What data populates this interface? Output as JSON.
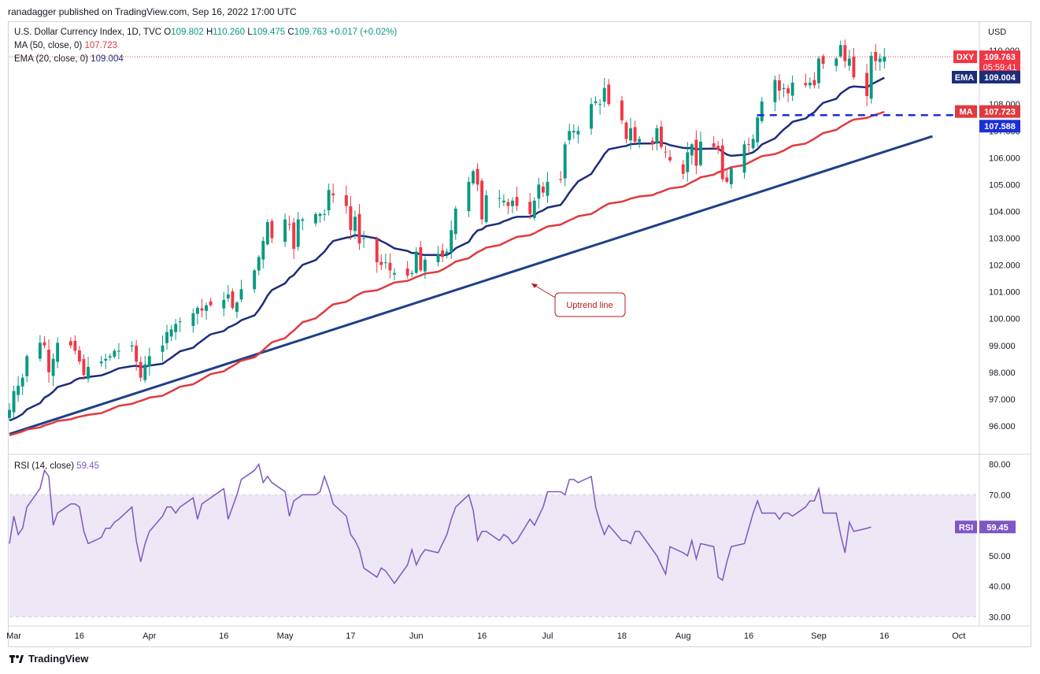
{
  "publisher": "ranadagger published on TradingView.com, Sep 16, 2022 17:00 UTC",
  "symbol_line": {
    "name": "U.S. Dollar Currency Index, 1D, TVC",
    "o_label": "O",
    "o": "109.802",
    "h_label": "H",
    "h": "110.260",
    "l_label": "L",
    "l": "109.475",
    "c_label": "C",
    "c": "109.763",
    "change": "+0.017 (+0.02%)"
  },
  "ma_line": {
    "label": "MA (50, close, 0)",
    "value": "107.723"
  },
  "ema_line": {
    "label": "EMA (20, close, 0)",
    "value": "109.004"
  },
  "rsi_line": {
    "label": "RSI (14, close)",
    "value": "59.45"
  },
  "footer": {
    "brand": "TradingView"
  },
  "colors": {
    "up": "#089981",
    "down": "#f23645",
    "ema": "#1c2e7a",
    "ma": "#e03a3e",
    "trend": "#1f3f8a",
    "rsi": "#7e57c2",
    "rsi_band": "#ede7f6",
    "support": "#1b2fd6"
  },
  "chart_data": [
    {
      "type": "candlestick",
      "currency": "USD",
      "ylim": [
        95.0,
        111.0
      ],
      "y_ticks": [
        "96.000",
        "97.000",
        "98.000",
        "99.000",
        "100.000",
        "101.000",
        "102.000",
        "103.000",
        "104.000",
        "105.000",
        "106.000",
        "107.000",
        "108.000",
        "109.000",
        "110.000"
      ],
      "x_ticks": [
        "Mar",
        "16",
        "Apr",
        "16",
        "May",
        "17",
        "Jun",
        "16",
        "Jul",
        "18",
        "Aug",
        "16",
        "Sep",
        "16",
        "Oct"
      ],
      "x_tick_dates": [
        "2022-03-01",
        "2022-03-16",
        "2022-04-01",
        "2022-04-18",
        "2022-05-02",
        "2022-05-17",
        "2022-06-01",
        "2022-06-16",
        "2022-07-01",
        "2022-07-18",
        "2022-08-01",
        "2022-08-16",
        "2022-09-01",
        "2022-09-16",
        "2022-10-03"
      ],
      "close_series": [
        [
          "2022-02-28",
          96.6
        ],
        [
          "2022-03-01",
          97.3
        ],
        [
          "2022-03-02",
          97.5
        ],
        [
          "2022-03-03",
          97.8
        ],
        [
          "2022-03-04",
          98.6
        ],
        [
          "2022-03-07",
          99.1
        ],
        [
          "2022-03-08",
          99.0
        ],
        [
          "2022-03-09",
          98.0
        ],
        [
          "2022-03-10",
          98.5
        ],
        [
          "2022-03-11",
          99.1
        ],
        [
          "2022-03-14",
          99.0
        ],
        [
          "2022-03-15",
          98.8
        ],
        [
          "2022-03-16",
          98.4
        ],
        [
          "2022-03-17",
          97.9
        ],
        [
          "2022-03-18",
          98.2
        ],
        [
          "2022-03-21",
          98.4
        ],
        [
          "2022-03-22",
          98.5
        ],
        [
          "2022-03-23",
          98.6
        ],
        [
          "2022-03-24",
          98.8
        ],
        [
          "2022-03-25",
          98.8
        ],
        [
          "2022-03-28",
          99.0
        ],
        [
          "2022-03-29",
          98.4
        ],
        [
          "2022-03-30",
          97.8
        ],
        [
          "2022-03-31",
          98.3
        ],
        [
          "2022-04-01",
          98.6
        ],
        [
          "2022-04-04",
          99.0
        ],
        [
          "2022-04-05",
          99.5
        ],
        [
          "2022-04-06",
          99.6
        ],
        [
          "2022-04-07",
          99.8
        ],
        [
          "2022-04-08",
          99.9
        ],
        [
          "2022-04-11",
          100.2
        ],
        [
          "2022-04-12",
          100.4
        ],
        [
          "2022-04-13",
          100.3
        ],
        [
          "2022-04-14",
          100.5
        ],
        [
          "2022-04-15",
          100.5
        ],
        [
          "2022-04-18",
          100.7
        ],
        [
          "2022-04-19",
          100.9
        ],
        [
          "2022-04-20",
          100.4
        ],
        [
          "2022-04-21",
          100.6
        ],
        [
          "2022-04-22",
          101.1
        ],
        [
          "2022-04-25",
          101.8
        ],
        [
          "2022-04-26",
          102.3
        ],
        [
          "2022-04-27",
          102.9
        ],
        [
          "2022-04-28",
          103.6
        ],
        [
          "2022-04-29",
          103.0
        ],
        [
          "2022-05-02",
          103.7
        ],
        [
          "2022-05-03",
          103.5
        ],
        [
          "2022-05-04",
          102.6
        ],
        [
          "2022-05-05",
          103.7
        ],
        [
          "2022-05-06",
          103.7
        ],
        [
          "2022-05-09",
          103.9
        ],
        [
          "2022-05-10",
          103.9
        ],
        [
          "2022-05-11",
          103.9
        ],
        [
          "2022-05-12",
          104.8
        ],
        [
          "2022-05-13",
          104.6
        ],
        [
          "2022-05-16",
          104.2
        ],
        [
          "2022-05-17",
          103.3
        ],
        [
          "2022-05-18",
          103.8
        ],
        [
          "2022-05-19",
          102.8
        ],
        [
          "2022-05-20",
          103.0
        ],
        [
          "2022-05-23",
          102.1
        ],
        [
          "2022-05-24",
          102.0
        ],
        [
          "2022-05-25",
          102.1
        ],
        [
          "2022-05-26",
          101.8
        ],
        [
          "2022-05-27",
          101.7
        ],
        [
          "2022-05-30",
          101.6
        ],
        [
          "2022-05-31",
          101.7
        ],
        [
          "2022-06-01",
          102.5
        ],
        [
          "2022-06-02",
          101.8
        ],
        [
          "2022-06-03",
          102.2
        ],
        [
          "2022-06-06",
          102.4
        ],
        [
          "2022-06-07",
          102.3
        ],
        [
          "2022-06-08",
          102.5
        ],
        [
          "2022-06-09",
          103.3
        ],
        [
          "2022-06-10",
          104.1
        ],
        [
          "2022-06-13",
          105.1
        ],
        [
          "2022-06-14",
          105.5
        ],
        [
          "2022-06-15",
          105.0
        ],
        [
          "2022-06-16",
          103.7
        ],
        [
          "2022-06-17",
          104.6
        ],
        [
          "2022-06-20",
          104.5
        ],
        [
          "2022-06-21",
          104.4
        ],
        [
          "2022-06-22",
          104.2
        ],
        [
          "2022-06-23",
          104.4
        ],
        [
          "2022-06-24",
          104.2
        ],
        [
          "2022-06-27",
          103.9
        ],
        [
          "2022-06-28",
          104.4
        ],
        [
          "2022-06-29",
          105.0
        ],
        [
          "2022-06-30",
          104.7
        ],
        [
          "2022-07-01",
          105.1
        ],
        [
          "2022-07-04",
          105.2
        ],
        [
          "2022-07-05",
          106.5
        ],
        [
          "2022-07-06",
          107.0
        ],
        [
          "2022-07-07",
          107.0
        ],
        [
          "2022-07-08",
          107.0
        ],
        [
          "2022-07-11",
          108.0
        ],
        [
          "2022-07-12",
          108.1
        ],
        [
          "2022-07-13",
          108.0
        ],
        [
          "2022-07-14",
          108.6
        ],
        [
          "2022-07-15",
          108.0
        ],
        [
          "2022-07-18",
          107.4
        ],
        [
          "2022-07-19",
          106.7
        ],
        [
          "2022-07-20",
          107.1
        ],
        [
          "2022-07-21",
          106.6
        ],
        [
          "2022-07-22",
          106.7
        ],
        [
          "2022-07-25",
          106.5
        ],
        [
          "2022-07-26",
          107.1
        ],
        [
          "2022-07-27",
          106.4
        ],
        [
          "2022-07-28",
          106.2
        ],
        [
          "2022-07-29",
          105.9
        ],
        [
          "2022-08-01",
          105.4
        ],
        [
          "2022-08-02",
          106.2
        ],
        [
          "2022-08-03",
          106.5
        ],
        [
          "2022-08-04",
          105.7
        ],
        [
          "2022-08-05",
          106.6
        ],
        [
          "2022-08-08",
          106.4
        ],
        [
          "2022-08-09",
          106.3
        ],
        [
          "2022-08-10",
          105.2
        ],
        [
          "2022-08-11",
          105.1
        ],
        [
          "2022-08-12",
          105.6
        ],
        [
          "2022-08-15",
          106.5
        ],
        [
          "2022-08-16",
          106.5
        ],
        [
          "2022-08-17",
          106.7
        ],
        [
          "2022-08-18",
          107.5
        ],
        [
          "2022-08-19",
          108.1
        ],
        [
          "2022-08-22",
          108.9
        ],
        [
          "2022-08-23",
          108.5
        ],
        [
          "2022-08-24",
          108.6
        ],
        [
          "2022-08-25",
          108.4
        ],
        [
          "2022-08-26",
          108.8
        ],
        [
          "2022-08-29",
          108.7
        ],
        [
          "2022-08-30",
          108.8
        ],
        [
          "2022-08-31",
          108.7
        ],
        [
          "2022-09-01",
          109.7
        ],
        [
          "2022-09-02",
          109.5
        ],
        [
          "2022-09-05",
          109.7
        ],
        [
          "2022-09-06",
          110.2
        ],
        [
          "2022-09-07",
          109.6
        ],
        [
          "2022-09-08",
          109.7
        ],
        [
          "2022-09-09",
          109.0
        ],
        [
          "2022-09-12",
          108.3
        ],
        [
          "2022-09-13",
          109.8
        ],
        [
          "2022-09-14",
          109.6
        ],
        [
          "2022-09-15",
          109.7
        ],
        [
          "2022-09-16",
          109.763
        ]
      ],
      "last": {
        "symbol": "DXY",
        "value": "109.763",
        "countdown": "05:59:41"
      },
      "ema20": {
        "label": "EMA",
        "value": "109.004"
      },
      "ma50": {
        "label": "MA",
        "value": "107.723"
      },
      "support_level": {
        "value": "107.588",
        "from": "2022-08-19",
        "to": "2022-09-16"
      },
      "trendline": {
        "label": "Uptrend line",
        "start": [
          "2022-02-28",
          95.7
        ],
        "end": [
          "2022-09-27",
          106.8
        ]
      }
    },
    {
      "type": "line",
      "title": "RSI (14, close)",
      "ylim": [
        27,
        83
      ],
      "y_ticks": [
        "30.00",
        "40.00",
        "50.00",
        "60.00",
        "70.00",
        "80.00"
      ],
      "band": [
        30,
        70
      ],
      "midline": 50,
      "last": {
        "label": "RSI",
        "value": "59.45"
      },
      "series": [
        [
          "2022-02-28",
          54
        ],
        [
          "2022-03-01",
          63
        ],
        [
          "2022-03-02",
          57
        ],
        [
          "2022-03-03",
          59
        ],
        [
          "2022-03-04",
          66
        ],
        [
          "2022-03-07",
          72
        ],
        [
          "2022-03-08",
          78
        ],
        [
          "2022-03-09",
          76
        ],
        [
          "2022-03-10",
          60
        ],
        [
          "2022-03-11",
          64
        ],
        [
          "2022-03-14",
          67
        ],
        [
          "2022-03-15",
          67
        ],
        [
          "2022-03-16",
          66
        ],
        [
          "2022-03-17",
          58
        ],
        [
          "2022-03-18",
          54
        ],
        [
          "2022-03-21",
          56
        ],
        [
          "2022-03-22",
          59
        ],
        [
          "2022-03-23",
          59
        ],
        [
          "2022-03-24",
          61
        ],
        [
          "2022-03-25",
          62
        ],
        [
          "2022-03-28",
          66
        ],
        [
          "2022-03-29",
          55
        ],
        [
          "2022-03-30",
          48
        ],
        [
          "2022-03-31",
          54
        ],
        [
          "2022-04-01",
          58
        ],
        [
          "2022-04-04",
          63
        ],
        [
          "2022-04-05",
          66
        ],
        [
          "2022-04-06",
          66
        ],
        [
          "2022-04-07",
          64
        ],
        [
          "2022-04-08",
          66
        ],
        [
          "2022-04-11",
          69
        ],
        [
          "2022-04-12",
          62
        ],
        [
          "2022-04-13",
          67
        ],
        [
          "2022-04-14",
          68
        ],
        [
          "2022-04-15",
          69
        ],
        [
          "2022-04-18",
          72
        ],
        [
          "2022-04-19",
          62
        ],
        [
          "2022-04-20",
          66
        ],
        [
          "2022-04-21",
          70
        ],
        [
          "2022-04-22",
          75
        ],
        [
          "2022-04-25",
          78
        ],
        [
          "2022-04-26",
          80
        ],
        [
          "2022-04-27",
          74
        ],
        [
          "2022-04-28",
          76
        ],
        [
          "2022-04-29",
          74
        ],
        [
          "2022-05-02",
          71
        ],
        [
          "2022-05-03",
          63
        ],
        [
          "2022-05-04",
          68
        ],
        [
          "2022-05-05",
          69
        ],
        [
          "2022-05-06",
          70
        ],
        [
          "2022-05-09",
          70
        ],
        [
          "2022-05-10",
          71
        ],
        [
          "2022-05-11",
          76
        ],
        [
          "2022-05-12",
          72
        ],
        [
          "2022-05-13",
          67
        ],
        [
          "2022-05-16",
          63
        ],
        [
          "2022-05-17",
          57
        ],
        [
          "2022-05-18",
          55
        ],
        [
          "2022-05-19",
          52
        ],
        [
          "2022-05-20",
          46
        ],
        [
          "2022-05-23",
          43
        ],
        [
          "2022-05-24",
          46
        ],
        [
          "2022-05-25",
          45
        ],
        [
          "2022-05-26",
          43
        ],
        [
          "2022-05-27",
          41
        ],
        [
          "2022-05-30",
          47
        ],
        [
          "2022-05-31",
          52
        ],
        [
          "2022-06-01",
          47
        ],
        [
          "2022-06-02",
          50
        ],
        [
          "2022-06-03",
          52
        ],
        [
          "2022-06-06",
          51
        ],
        [
          "2022-06-07",
          54
        ],
        [
          "2022-06-08",
          57
        ],
        [
          "2022-06-09",
          62
        ],
        [
          "2022-06-10",
          66
        ],
        [
          "2022-06-13",
          70
        ],
        [
          "2022-06-14",
          65
        ],
        [
          "2022-06-15",
          55
        ],
        [
          "2022-06-16",
          58
        ],
        [
          "2022-06-17",
          58
        ],
        [
          "2022-06-20",
          55
        ],
        [
          "2022-06-21",
          57
        ],
        [
          "2022-06-22",
          56
        ],
        [
          "2022-06-23",
          54
        ],
        [
          "2022-06-24",
          55
        ],
        [
          "2022-06-27",
          62
        ],
        [
          "2022-06-28",
          60
        ],
        [
          "2022-06-29",
          63
        ],
        [
          "2022-06-30",
          66
        ],
        [
          "2022-07-01",
          71
        ],
        [
          "2022-07-04",
          71
        ],
        [
          "2022-07-05",
          70
        ],
        [
          "2022-07-06",
          75
        ],
        [
          "2022-07-07",
          75
        ],
        [
          "2022-07-08",
          74
        ],
        [
          "2022-07-11",
          76
        ],
        [
          "2022-07-12",
          66
        ],
        [
          "2022-07-13",
          61
        ],
        [
          "2022-07-14",
          57
        ],
        [
          "2022-07-15",
          60
        ],
        [
          "2022-07-18",
          55
        ],
        [
          "2022-07-19",
          55
        ],
        [
          "2022-07-20",
          54
        ],
        [
          "2022-07-21",
          58
        ],
        [
          "2022-07-22",
          58
        ],
        [
          "2022-07-25",
          52
        ],
        [
          "2022-07-26",
          50
        ],
        [
          "2022-07-27",
          47
        ],
        [
          "2022-07-28",
          44
        ],
        [
          "2022-07-29",
          53
        ],
        [
          "2022-08-01",
          51
        ],
        [
          "2022-08-02",
          50
        ],
        [
          "2022-08-03",
          55
        ],
        [
          "2022-08-04",
          49
        ],
        [
          "2022-08-05",
          54
        ],
        [
          "2022-08-08",
          53
        ],
        [
          "2022-08-09",
          43
        ],
        [
          "2022-08-10",
          42
        ],
        [
          "2022-08-11",
          48
        ],
        [
          "2022-08-12",
          53
        ],
        [
          "2022-08-15",
          54
        ],
        [
          "2022-08-16",
          59
        ],
        [
          "2022-08-17",
          64
        ],
        [
          "2022-08-18",
          68
        ],
        [
          "2022-08-19",
          64
        ],
        [
          "2022-08-22",
          64
        ],
        [
          "2022-08-23",
          62
        ],
        [
          "2022-08-24",
          64
        ],
        [
          "2022-08-25",
          64
        ],
        [
          "2022-08-26",
          63
        ],
        [
          "2022-08-29",
          66
        ],
        [
          "2022-08-30",
          68
        ],
        [
          "2022-08-31",
          68
        ],
        [
          "2022-09-01",
          72
        ],
        [
          "2022-09-02",
          64
        ],
        [
          "2022-09-05",
          64
        ],
        [
          "2022-09-06",
          57
        ],
        [
          "2022-09-07",
          51
        ],
        [
          "2022-09-08",
          61
        ],
        [
          "2022-09-09",
          58
        ],
        [
          "2022-09-12",
          59
        ],
        [
          "2022-09-13",
          59.45
        ]
      ]
    }
  ]
}
